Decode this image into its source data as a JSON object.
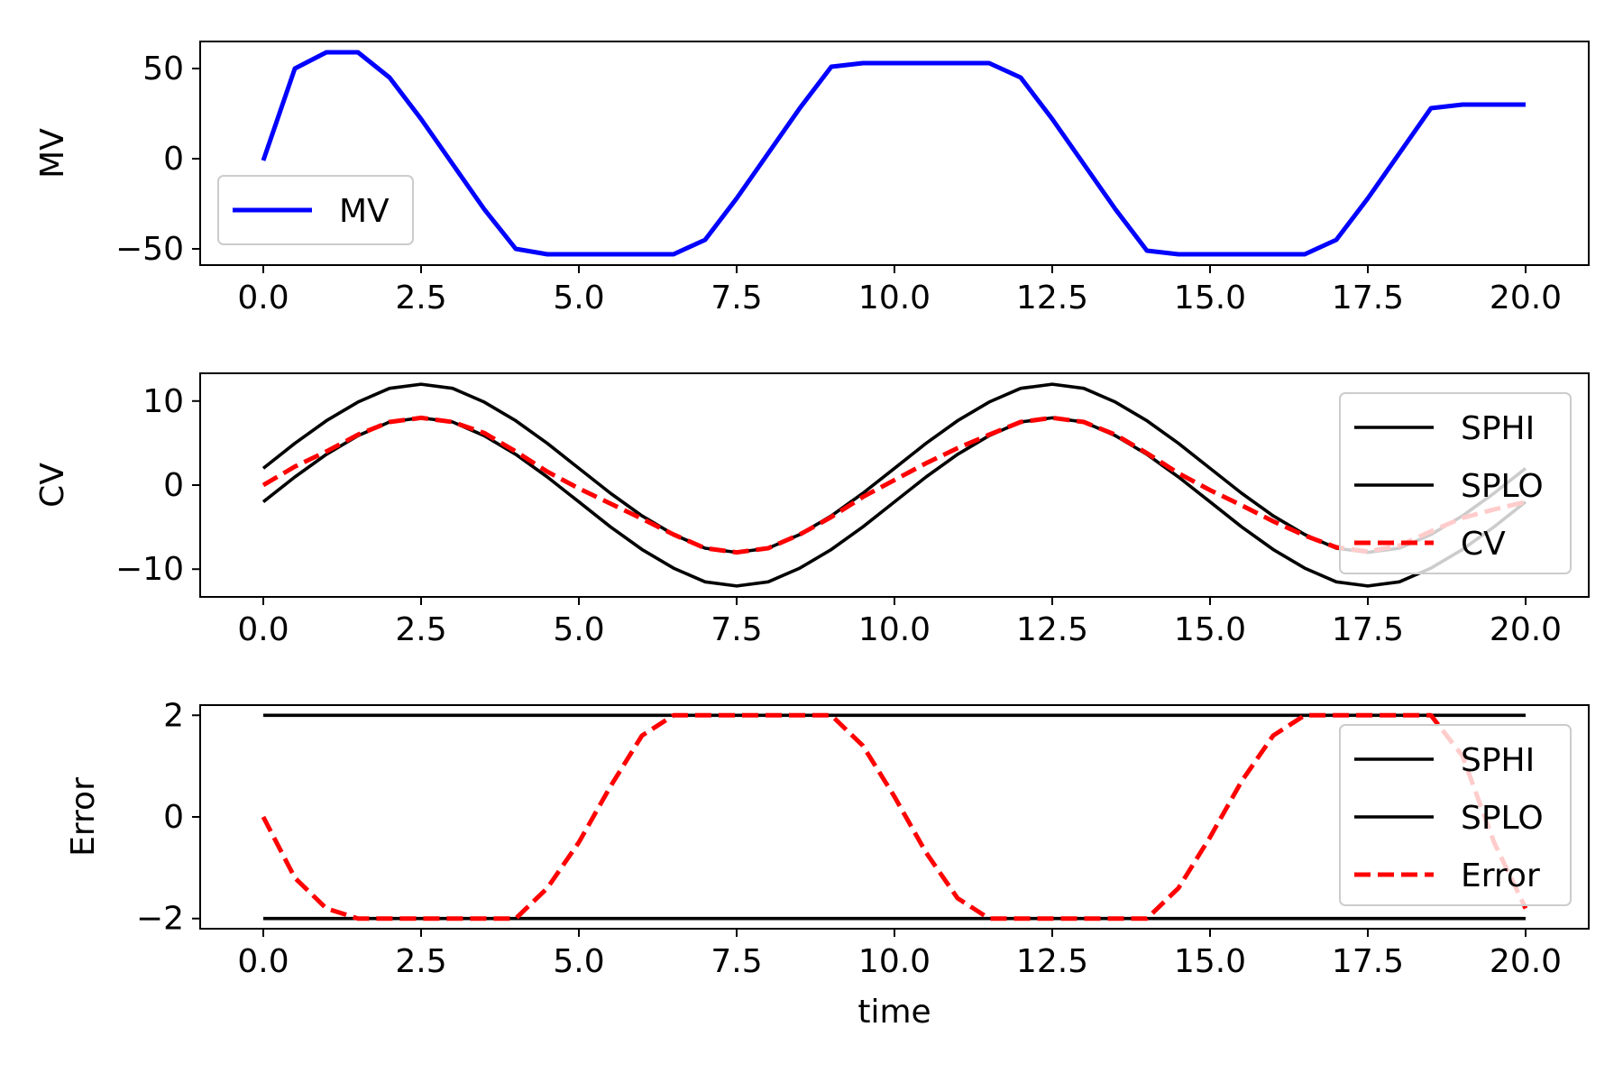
{
  "chart_data": [
    {
      "type": "line",
      "ylabel": "MV",
      "xlabel": "",
      "xlim": [
        -1,
        21
      ],
      "ylim": [
        -59,
        65
      ],
      "xticks": [
        0,
        2.5,
        5,
        7.5,
        10,
        12.5,
        15,
        17.5,
        20
      ],
      "xtick_labels": [
        "0.0",
        "2.5",
        "5.0",
        "7.5",
        "10.0",
        "12.5",
        "15.0",
        "17.5",
        "20.0"
      ],
      "yticks": [
        -50,
        0,
        50
      ],
      "ytick_labels": [
        "−50",
        "0",
        "50"
      ],
      "legend_position": "lower-left",
      "series": [
        {
          "name": "MV",
          "color": "#0000ff",
          "style": "solid",
          "x": [
            0,
            0.5,
            1,
            1.5,
            2,
            2.5,
            3,
            3.5,
            4,
            4.5,
            5,
            5.5,
            6,
            6.5,
            7,
            7.5,
            8,
            8.5,
            9,
            9.5,
            10,
            10.5,
            11,
            11.5,
            12,
            12.5,
            13,
            13.5,
            14,
            14.5,
            15,
            15.5,
            16,
            16.5,
            17,
            17.5,
            18,
            18.5,
            19,
            19.5,
            20
          ],
          "y": [
            -1,
            50,
            59,
            59,
            45,
            22,
            -3,
            -28,
            -50,
            -53,
            -53,
            -53,
            -53,
            -53,
            -45,
            -22,
            3,
            28,
            51,
            53,
            53,
            53,
            53,
            53,
            45,
            22,
            -3,
            -28,
            -51,
            -53,
            -53,
            -53,
            -53,
            -53,
            -45,
            -22,
            3,
            28,
            30,
            30,
            30
          ]
        }
      ]
    },
    {
      "type": "line",
      "ylabel": "CV",
      "xlabel": "",
      "xlim": [
        -1,
        21
      ],
      "ylim": [
        -13.3,
        13.3
      ],
      "xticks": [
        0,
        2.5,
        5,
        7.5,
        10,
        12.5,
        15,
        17.5,
        20
      ],
      "xtick_labels": [
        "0.0",
        "2.5",
        "5.0",
        "7.5",
        "10.0",
        "12.5",
        "15.0",
        "17.5",
        "20.0"
      ],
      "yticks": [
        -10,
        0,
        10
      ],
      "ytick_labels": [
        "−10",
        "0",
        "10"
      ],
      "legend_position": "right",
      "series": [
        {
          "name": "SPHI",
          "color": "#000000",
          "style": "solid",
          "x": [
            0,
            0.5,
            1,
            1.5,
            2,
            2.5,
            3,
            3.5,
            4,
            4.5,
            5,
            5.5,
            6,
            6.5,
            7,
            7.5,
            8,
            8.5,
            9,
            9.5,
            10,
            10.5,
            11,
            11.5,
            12,
            12.5,
            13,
            13.5,
            14,
            14.5,
            15,
            15.5,
            16,
            16.5,
            17,
            17.5,
            18,
            18.5,
            19,
            19.5,
            20
          ],
          "y": [
            2,
            4.97,
            7.66,
            9.88,
            11.51,
            12,
            11.51,
            9.88,
            7.66,
            4.97,
            2,
            -0.97,
            -3.66,
            -5.88,
            -7.51,
            -8,
            -7.51,
            -5.88,
            -3.66,
            -0.97,
            2,
            4.97,
            7.66,
            9.88,
            11.51,
            12,
            11.51,
            9.88,
            7.66,
            4.97,
            2,
            -0.97,
            -3.66,
            -5.88,
            -7.51,
            -8,
            -7.51,
            -5.88,
            -3.66,
            -0.97,
            2
          ]
        },
        {
          "name": "SPLO",
          "color": "#000000",
          "style": "solid",
          "x": [
            0,
            0.5,
            1,
            1.5,
            2,
            2.5,
            3,
            3.5,
            4,
            4.5,
            5,
            5.5,
            6,
            6.5,
            7,
            7.5,
            8,
            8.5,
            9,
            9.5,
            10,
            10.5,
            11,
            11.5,
            12,
            12.5,
            13,
            13.5,
            14,
            14.5,
            15,
            15.5,
            16,
            16.5,
            17,
            17.5,
            18,
            18.5,
            19,
            19.5,
            20
          ],
          "y": [
            -2,
            0.97,
            3.66,
            5.88,
            7.51,
            8,
            7.51,
            5.88,
            3.66,
            0.97,
            -2,
            -4.97,
            -7.66,
            -9.88,
            -11.51,
            -12,
            -11.51,
            -9.88,
            -7.66,
            -4.97,
            -2,
            0.97,
            3.66,
            5.88,
            7.51,
            8,
            7.51,
            5.88,
            3.66,
            0.97,
            -2,
            -4.97,
            -7.66,
            -9.88,
            -11.51,
            -12,
            -11.51,
            -9.88,
            -7.66,
            -4.97,
            -2
          ]
        },
        {
          "name": "CV",
          "color": "#ff0000",
          "style": "dashed",
          "x": [
            0,
            0.5,
            1,
            1.5,
            2,
            2.5,
            3,
            3.5,
            4,
            4.5,
            5,
            5.5,
            6,
            6.5,
            7,
            7.5,
            8,
            8.5,
            9,
            9.5,
            10,
            10.5,
            11,
            11.5,
            12,
            12.5,
            13,
            13.5,
            14,
            14.5,
            15,
            15.5,
            16,
            16.5,
            17,
            17.5,
            18,
            18.5,
            19,
            19.5,
            20
          ],
          "y": [
            0,
            2.2,
            4.0,
            6.0,
            7.51,
            8,
            7.51,
            6.2,
            4.0,
            1.6,
            -0.4,
            -2.2,
            -4.0,
            -5.88,
            -7.51,
            -8,
            -7.51,
            -5.88,
            -3.8,
            -1.4,
            0.6,
            2.6,
            4.4,
            6.0,
            7.51,
            8,
            7.51,
            6.0,
            3.8,
            1.4,
            -0.6,
            -2.4,
            -4.3,
            -6.0,
            -7.4,
            -7.9,
            -7.2,
            -5.5,
            -3.9,
            -2.9,
            -2.0
          ]
        }
      ]
    },
    {
      "type": "line",
      "ylabel": "Error",
      "xlabel": "time",
      "xlim": [
        -1,
        21
      ],
      "ylim": [
        -2.2,
        2.2
      ],
      "xticks": [
        0,
        2.5,
        5,
        7.5,
        10,
        12.5,
        15,
        17.5,
        20
      ],
      "xtick_labels": [
        "0.0",
        "2.5",
        "5.0",
        "7.5",
        "10.0",
        "12.5",
        "15.0",
        "17.5",
        "20.0"
      ],
      "yticks": [
        -2,
        0,
        2
      ],
      "ytick_labels": [
        "−2",
        "0",
        "2"
      ],
      "legend_position": "right",
      "series": [
        {
          "name": "SPHI",
          "color": "#000000",
          "style": "solid",
          "x": [
            0,
            20
          ],
          "y": [
            2,
            2
          ]
        },
        {
          "name": "SPLO",
          "color": "#000000",
          "style": "solid",
          "x": [
            0,
            20
          ],
          "y": [
            -2,
            -2
          ]
        },
        {
          "name": "Error",
          "color": "#ff0000",
          "style": "dashed",
          "x": [
            0,
            0.5,
            1,
            1.5,
            2,
            2.5,
            3,
            3.5,
            4,
            4.5,
            5,
            5.5,
            6,
            6.5,
            7,
            7.5,
            8,
            8.5,
            9,
            9.5,
            10,
            10.5,
            11,
            11.5,
            12,
            12.5,
            13,
            13.5,
            14,
            14.5,
            15,
            15.5,
            16,
            16.5,
            17,
            17.5,
            18,
            18.5,
            19,
            19.5,
            20
          ],
          "y": [
            0,
            -1.2,
            -1.8,
            -2,
            -2,
            -2,
            -2,
            -2,
            -2,
            -1.4,
            -0.5,
            0.6,
            1.6,
            2,
            2,
            2,
            2,
            2,
            2,
            1.4,
            0.4,
            -0.7,
            -1.6,
            -2,
            -2,
            -2,
            -2,
            -2,
            -2,
            -1.4,
            -0.4,
            0.7,
            1.6,
            2,
            2,
            2,
            2,
            2,
            1.2,
            -0.5,
            -1.8
          ]
        }
      ]
    }
  ]
}
